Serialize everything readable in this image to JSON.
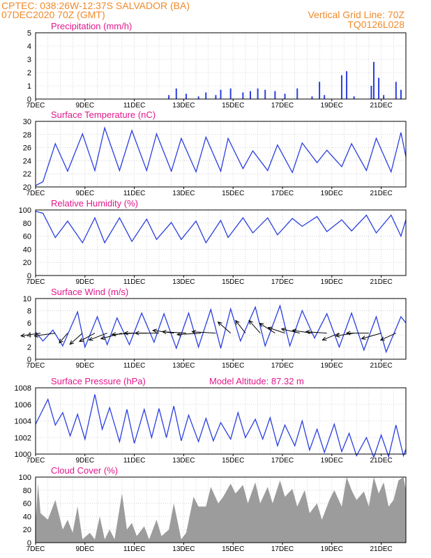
{
  "header": {
    "title_line1": "CPTEC:   038:26W-12:37S   SALVADOR (BA)",
    "title_line2": "07DEC2020  70Z (GMT)",
    "grid_note": "Vertical Grid Line: 70Z",
    "code": "TQ0126L028"
  },
  "colors": {
    "header": "#f08a2a",
    "panel_title": "#e0188c",
    "series": "#2a3fe0",
    "cloud": "#9c9c9c",
    "grid": "#b8b8b8",
    "arrow": "#000000"
  },
  "x_ticks": [
    "7DEC",
    "9DEC",
    "11DEC",
    "13DEC",
    "15DEC",
    "17DEC",
    "19DEC",
    "21DEC"
  ],
  "chart_data": [
    {
      "type": "bar",
      "title": "Precipitation  (mm/h)",
      "ylim": [
        0,
        5
      ],
      "yticks": [
        "0",
        "1",
        "2",
        "3",
        "4",
        "5"
      ],
      "x": [
        "12.4",
        "12.7",
        "13.1",
        "13.6",
        "13.9",
        "14.3",
        "14.5",
        "14.9",
        "15.4",
        "15.7",
        "16.0",
        "16.3",
        "16.7",
        "17.1",
        "17.6",
        "18.2",
        "18.5",
        "18.7",
        "19.4",
        "19.6",
        "19.9",
        "20.6",
        "20.7",
        "20.9",
        "21.1",
        "21.6",
        "21.8"
      ],
      "values": [
        0.3,
        0.8,
        0.4,
        0.2,
        0.5,
        0.3,
        0.7,
        0.8,
        0.5,
        0.6,
        0.8,
        0.7,
        0.6,
        0.4,
        0.8,
        0.2,
        1.3,
        0.3,
        1.8,
        2.1,
        0.2,
        1.0,
        2.8,
        1.6,
        0.3,
        1.3,
        0.7
      ]
    },
    {
      "type": "line",
      "title": "Surface Temperature (nC)",
      "ylim": [
        20,
        30
      ],
      "yticks": [
        "20",
        "22",
        "24",
        "26",
        "28",
        "30"
      ],
      "series": [
        {
          "points": [
            [
              7.0,
              20.2
            ],
            [
              7.3,
              20.8
            ],
            [
              7.8,
              26.6
            ],
            [
              8.3,
              22.4
            ],
            [
              8.9,
              28.1
            ],
            [
              9.4,
              22.5
            ],
            [
              9.8,
              29.0
            ],
            [
              10.4,
              22.5
            ],
            [
              10.9,
              28.6
            ],
            [
              11.5,
              22.5
            ],
            [
              11.9,
              28.1
            ],
            [
              12.5,
              22.4
            ],
            [
              12.9,
              27.4
            ],
            [
              13.5,
              22.3
            ],
            [
              13.9,
              27.6
            ],
            [
              14.5,
              22.4
            ],
            [
              14.8,
              27.4
            ],
            [
              15.4,
              22.8
            ],
            [
              15.8,
              25.5
            ],
            [
              16.4,
              22.5
            ],
            [
              16.8,
              26.4
            ],
            [
              17.4,
              22.2
            ],
            [
              17.8,
              26.7
            ],
            [
              18.4,
              23.7
            ],
            [
              18.8,
              25.6
            ],
            [
              19.4,
              23.1
            ],
            [
              19.8,
              26.6
            ],
            [
              20.4,
              22.5
            ],
            [
              20.8,
              27.4
            ],
            [
              21.4,
              22.3
            ],
            [
              21.8,
              28.3
            ],
            [
              22.0,
              24.6
            ]
          ]
        }
      ]
    },
    {
      "type": "line",
      "title": "Relative Humidity  (%)",
      "ylim": [
        0,
        100
      ],
      "yticks": [
        "0",
        "20",
        "40",
        "60",
        "80",
        "100"
      ],
      "series": [
        {
          "points": [
            [
              7.0,
              98
            ],
            [
              7.3,
              95
            ],
            [
              7.8,
              58
            ],
            [
              8.3,
              83
            ],
            [
              8.9,
              50
            ],
            [
              9.4,
              88
            ],
            [
              9.8,
              50
            ],
            [
              10.4,
              88
            ],
            [
              10.9,
              52
            ],
            [
              11.5,
              86
            ],
            [
              11.9,
              55
            ],
            [
              12.5,
              81
            ],
            [
              12.9,
              55
            ],
            [
              13.5,
              83
            ],
            [
              13.9,
              50
            ],
            [
              14.5,
              84
            ],
            [
              14.8,
              58
            ],
            [
              15.4,
              88
            ],
            [
              15.8,
              65
            ],
            [
              16.4,
              88
            ],
            [
              16.8,
              62
            ],
            [
              17.4,
              87
            ],
            [
              17.8,
              75
            ],
            [
              18.4,
              90
            ],
            [
              18.8,
              67
            ],
            [
              19.4,
              85
            ],
            [
              19.8,
              68
            ],
            [
              20.4,
              92
            ],
            [
              20.8,
              65
            ],
            [
              21.4,
              92
            ],
            [
              21.8,
              60
            ],
            [
              22.0,
              85
            ]
          ]
        }
      ]
    },
    {
      "type": "line",
      "title": "Surface Wind  (m/s)",
      "ylim": [
        0,
        10
      ],
      "yticks": [
        "0",
        "2",
        "4",
        "6",
        "8",
        "10"
      ],
      "series": [
        {
          "points": [
            [
              7.0,
              4.5
            ],
            [
              7.3,
              3.0
            ],
            [
              7.7,
              4.8
            ],
            [
              8.1,
              2.2
            ],
            [
              8.7,
              7.8
            ],
            [
              9.0,
              2.0
            ],
            [
              9.5,
              7.0
            ],
            [
              9.9,
              2.4
            ],
            [
              10.3,
              6.8
            ],
            [
              10.8,
              2.4
            ],
            [
              11.3,
              7.6
            ],
            [
              11.8,
              2.8
            ],
            [
              12.2,
              7.5
            ],
            [
              12.7,
              1.8
            ],
            [
              13.2,
              7.6
            ],
            [
              13.6,
              2.0
            ],
            [
              14.1,
              8.2
            ],
            [
              14.5,
              1.8
            ],
            [
              14.9,
              8.3
            ],
            [
              15.3,
              3.0
            ],
            [
              15.9,
              8.6
            ],
            [
              16.3,
              2.2
            ],
            [
              16.9,
              8.8
            ],
            [
              17.3,
              2.2
            ],
            [
              17.8,
              8.0
            ],
            [
              18.3,
              3.5
            ],
            [
              18.8,
              7.5
            ],
            [
              19.3,
              2.0
            ],
            [
              19.8,
              7.6
            ],
            [
              20.3,
              1.5
            ],
            [
              20.8,
              7.0
            ],
            [
              21.2,
              1.2
            ],
            [
              21.8,
              7.0
            ],
            [
              22.0,
              6.0
            ]
          ]
        }
      ],
      "arrows": [
        [
          7.2,
          4.3,
          -28,
          4
        ],
        [
          7.8,
          4.3,
          -30,
          4
        ],
        [
          8.3,
          4.3,
          -12,
          14
        ],
        [
          8.9,
          4.3,
          -18,
          16
        ],
        [
          9.4,
          4.3,
          -22,
          12
        ],
        [
          9.9,
          4.3,
          -26,
          10
        ],
        [
          10.5,
          4.3,
          -30,
          8
        ],
        [
          11.0,
          4.3,
          -32,
          2
        ],
        [
          11.5,
          4.3,
          -32,
          0
        ],
        [
          12.0,
          4.3,
          -34,
          0
        ],
        [
          12.6,
          4.3,
          -30,
          -4
        ],
        [
          13.1,
          4.3,
          -34,
          -2
        ],
        [
          13.7,
          4.3,
          -34,
          2
        ],
        [
          14.3,
          4.3,
          -34,
          -2
        ],
        [
          14.9,
          4.3,
          -18,
          -16
        ],
        [
          15.5,
          4.3,
          -14,
          -18
        ],
        [
          16.1,
          4.3,
          -16,
          -18
        ],
        [
          16.7,
          4.3,
          -22,
          -14
        ],
        [
          17.1,
          4.3,
          -24,
          -8
        ],
        [
          17.7,
          4.3,
          -26,
          -6
        ],
        [
          18.2,
          4.3,
          -28,
          -4
        ],
        [
          18.8,
          4.3,
          -30,
          -2
        ],
        [
          19.3,
          4.3,
          -24,
          10
        ],
        [
          19.9,
          4.3,
          -26,
          4
        ],
        [
          20.5,
          4.3,
          -32,
          0
        ],
        [
          21.0,
          4.3,
          -28,
          8
        ],
        [
          21.6,
          4.3,
          -22,
          10
        ]
      ]
    },
    {
      "type": "line",
      "title": "Surface Pressure (hPa)",
      "annotation": "Model Altitude:  87.32  m",
      "ylim": [
        1000,
        1008
      ],
      "yticks": [
        "1000",
        "1002",
        "1004",
        "1006",
        "1008"
      ],
      "series": [
        {
          "points": [
            [
              7.0,
              1003.6
            ],
            [
              7.2,
              1004.8
            ],
            [
              7.5,
              1006.6
            ],
            [
              7.8,
              1003.5
            ],
            [
              8.1,
              1005.0
            ],
            [
              8.4,
              1002.2
            ],
            [
              8.7,
              1004.8
            ],
            [
              9.0,
              1001.8
            ],
            [
              9.4,
              1007.2
            ],
            [
              9.7,
              1003.0
            ],
            [
              10.0,
              1005.6
            ],
            [
              10.4,
              1001.5
            ],
            [
              10.7,
              1005.4
            ],
            [
              11.0,
              1001.3
            ],
            [
              11.4,
              1005.4
            ],
            [
              11.7,
              1002.0
            ],
            [
              12.0,
              1005.5
            ],
            [
              12.3,
              1002.0
            ],
            [
              12.6,
              1005.8
            ],
            [
              12.9,
              1001.6
            ],
            [
              13.2,
              1004.7
            ],
            [
              13.6,
              1001.5
            ],
            [
              13.9,
              1004.3
            ],
            [
              14.2,
              1001.6
            ],
            [
              14.5,
              1003.8
            ],
            [
              14.9,
              1001.8
            ],
            [
              15.2,
              1005.0
            ],
            [
              15.5,
              1002.0
            ],
            [
              15.9,
              1004.2
            ],
            [
              16.2,
              1001.8
            ],
            [
              16.5,
              1004.4
            ],
            [
              16.8,
              1001.0
            ],
            [
              17.1,
              1003.5
            ],
            [
              17.5,
              1001.0
            ],
            [
              17.8,
              1004.0
            ],
            [
              18.1,
              1000.5
            ],
            [
              18.4,
              1003.0
            ],
            [
              18.7,
              1000.2
            ],
            [
              19.1,
              1003.6
            ],
            [
              19.4,
              1000.3
            ],
            [
              19.7,
              1002.5
            ],
            [
              20.0,
              999.8
            ],
            [
              20.4,
              1002.0
            ],
            [
              20.7,
              999.6
            ],
            [
              21.0,
              1002.3
            ],
            [
              21.3,
              999.7
            ],
            [
              21.6,
              1003.5
            ],
            [
              21.9,
              999.8
            ],
            [
              22.0,
              1000.6
            ]
          ]
        }
      ]
    },
    {
      "type": "area",
      "title": "Cloud Cover  (%)",
      "ylim": [
        0,
        100
      ],
      "yticks": [
        "0",
        "20",
        "40",
        "60",
        "80",
        "100"
      ],
      "series": [
        {
          "points": [
            [
              7.0,
              30
            ],
            [
              7.1,
              90
            ],
            [
              7.2,
              45
            ],
            [
              7.5,
              35
            ],
            [
              7.8,
              65
            ],
            [
              8.1,
              20
            ],
            [
              8.3,
              35
            ],
            [
              8.5,
              15
            ],
            [
              8.7,
              55
            ],
            [
              8.9,
              5
            ],
            [
              9.2,
              15
            ],
            [
              9.4,
              5
            ],
            [
              9.6,
              40
            ],
            [
              9.8,
              5
            ],
            [
              10.0,
              20
            ],
            [
              10.2,
              5
            ],
            [
              10.5,
              75
            ],
            [
              10.7,
              20
            ],
            [
              10.9,
              30
            ],
            [
              11.1,
              10
            ],
            [
              11.4,
              25
            ],
            [
              11.6,
              5
            ],
            [
              11.9,
              35
            ],
            [
              12.1,
              10
            ],
            [
              12.4,
              20
            ],
            [
              12.6,
              60
            ],
            [
              12.9,
              5
            ],
            [
              13.1,
              15
            ],
            [
              13.4,
              70
            ],
            [
              13.6,
              55
            ],
            [
              13.9,
              55
            ],
            [
              14.1,
              85
            ],
            [
              14.4,
              60
            ],
            [
              14.6,
              70
            ],
            [
              14.9,
              90
            ],
            [
              15.1,
              75
            ],
            [
              15.4,
              88
            ],
            [
              15.6,
              60
            ],
            [
              15.9,
              92
            ],
            [
              16.1,
              60
            ],
            [
              16.4,
              85
            ],
            [
              16.6,
              60
            ],
            [
              16.9,
              95
            ],
            [
              17.1,
              70
            ],
            [
              17.4,
              82
            ],
            [
              17.6,
              55
            ],
            [
              17.9,
              80
            ],
            [
              18.1,
              45
            ],
            [
              18.4,
              60
            ],
            [
              18.6,
              35
            ],
            [
              18.9,
              65
            ],
            [
              19.1,
              80
            ],
            [
              19.4,
              55
            ],
            [
              19.6,
              100
            ],
            [
              19.8,
              80
            ],
            [
              20.0,
              65
            ],
            [
              20.3,
              78
            ],
            [
              20.5,
              55
            ],
            [
              20.7,
              100
            ],
            [
              20.9,
              75
            ],
            [
              21.1,
              92
            ],
            [
              21.3,
              55
            ],
            [
              21.5,
              65
            ],
            [
              21.7,
              95
            ],
            [
              21.9,
              100
            ],
            [
              22.0,
              80
            ]
          ]
        }
      ]
    }
  ]
}
